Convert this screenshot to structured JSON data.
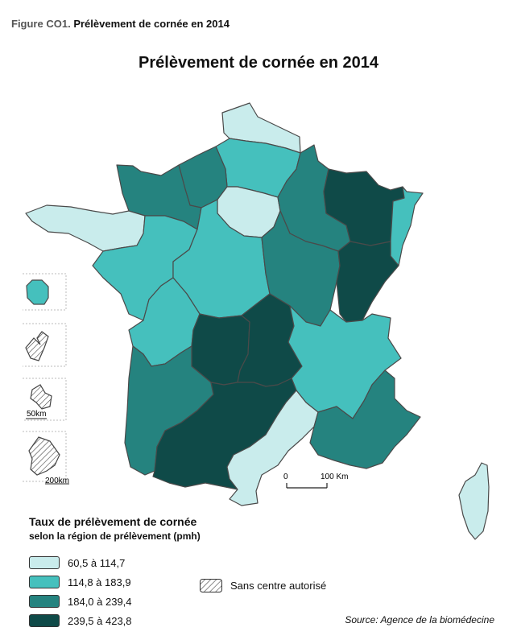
{
  "figure": {
    "number": "Figure CO1.",
    "caption": "Prélèvement de cornée en 2014"
  },
  "map_title": "Prélèvement de cornée en 2014",
  "colors": {
    "class1": "#c9ecec",
    "class2": "#45c0bd",
    "class3": "#25837f",
    "class4": "#0f4a48",
    "border": "#4a4a4a"
  },
  "legend": {
    "title": "Taux de prélèvement de cornée",
    "subtitle": "selon la région de prélèvement (pmh)",
    "items": [
      {
        "label": "60,5 à 114,7",
        "class": "class1"
      },
      {
        "label": "114,8 à 183,9",
        "class": "class2"
      },
      {
        "label": "184,0 à 239,4",
        "class": "class3"
      },
      {
        "label": "239,5 à 423,8",
        "class": "class4"
      }
    ],
    "hatch_label": "Sans centre autorisé"
  },
  "scale_bar": {
    "start": "0",
    "end": "100 Km"
  },
  "insets": [
    {
      "name": "reunion",
      "scale": ""
    },
    {
      "name": "guadeloupe",
      "scale": ""
    },
    {
      "name": "martinique",
      "scale": "50km"
    },
    {
      "name": "guyane",
      "scale": "200km"
    }
  ],
  "source": "Source: Agence de la biomédecine"
}
